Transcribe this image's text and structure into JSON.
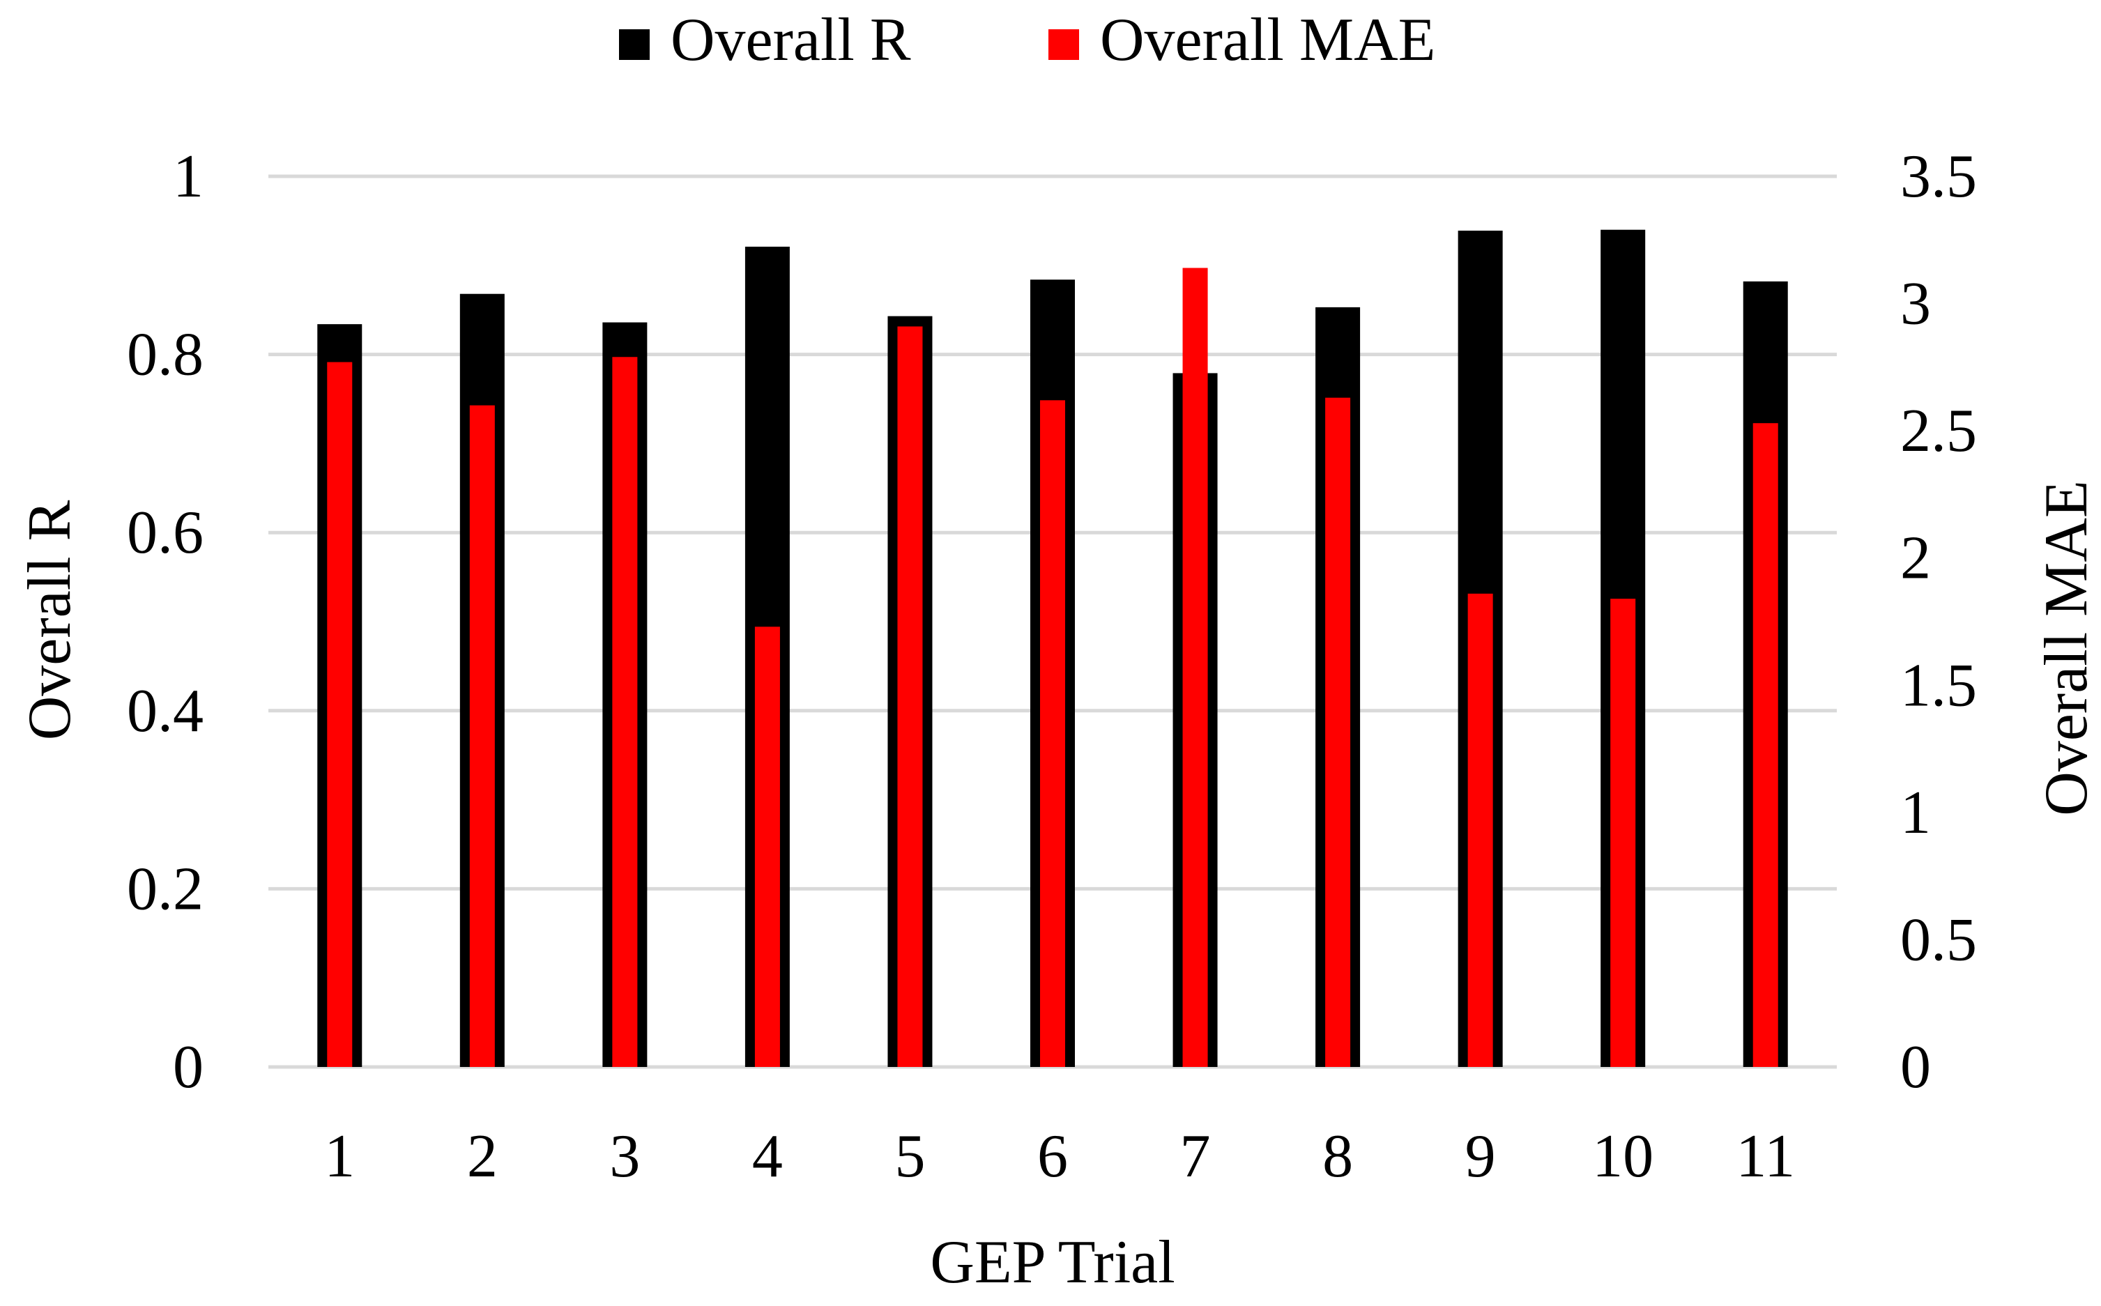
{
  "chart_data": {
    "type": "bar",
    "categories": [
      "1",
      "2",
      "3",
      "4",
      "5",
      "6",
      "7",
      "8",
      "9",
      "10",
      "11"
    ],
    "series": [
      {
        "name": "Overall R",
        "axis": "left",
        "color": "#000000",
        "values": [
          0.834,
          0.868,
          0.836,
          0.921,
          0.843,
          0.884,
          0.779,
          0.853,
          0.939,
          0.94,
          0.882
        ]
      },
      {
        "name": "Overall MAE",
        "axis": "right",
        "color": "#ff0000",
        "values": [
          2.77,
          2.6,
          2.79,
          1.73,
          2.91,
          2.62,
          3.14,
          2.63,
          1.86,
          1.84,
          2.53
        ]
      }
    ],
    "xlabel": "GEP Trial",
    "ylabel_left": "Overall R",
    "ylabel_right": "Overall MAE",
    "ylim_left": [
      0,
      1
    ],
    "ylim_right": [
      0,
      3.5
    ],
    "yticks_left": [
      "0",
      "0.2",
      "0.4",
      "0.6",
      "0.8",
      "1"
    ],
    "yticks_right": [
      "0",
      "0.5",
      "1",
      "1.5",
      "2",
      "2.5",
      "3",
      "3.5"
    ],
    "grid": true,
    "gridline_color": "#d9d9d9",
    "legend_position": "top-center"
  }
}
